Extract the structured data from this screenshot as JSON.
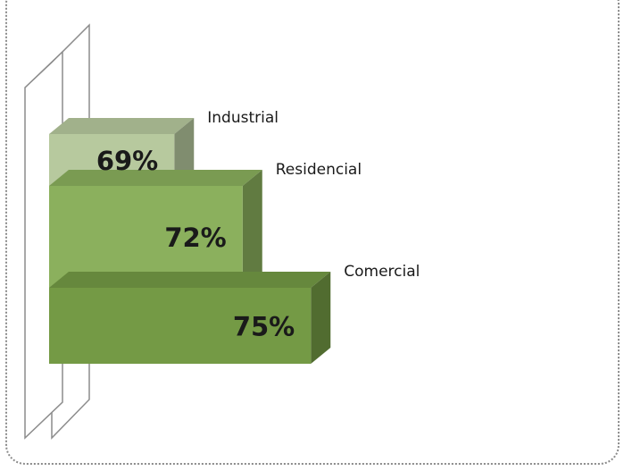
{
  "chart_data": {
    "type": "bar",
    "orientation": "horizontal-3d-stacked-steps",
    "categories": [
      "Industrial",
      "Residencial",
      "Comercial"
    ],
    "values": [
      69,
      72,
      75
    ],
    "value_labels": [
      "69%",
      "72%",
      "75%"
    ],
    "title": "",
    "xlabel": "",
    "ylabel": "",
    "grid": false,
    "legend": "none",
    "colors": {
      "Industrial": "#b7c99e",
      "Residencial": "#8bb05d",
      "Comercial": "#749a45"
    }
  }
}
